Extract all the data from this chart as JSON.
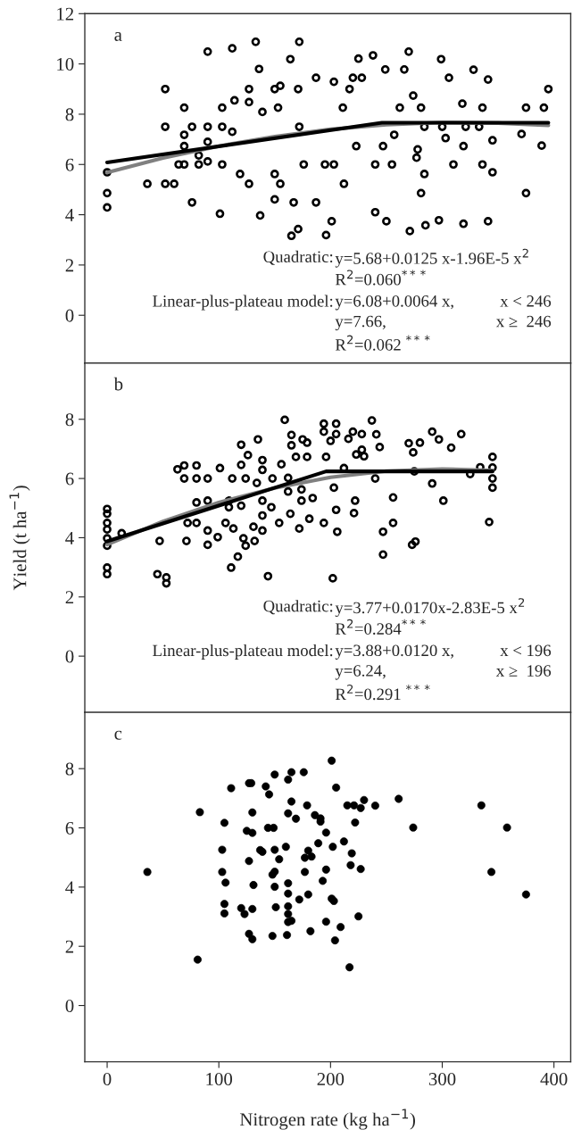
{
  "chart_data": [
    {
      "type": "scatter",
      "xlim": [
        -20,
        415
      ],
      "xticks": [
        0,
        100,
        200,
        300,
        400
      ],
      "ylim": [
        -1.9,
        12
      ],
      "yticks": [
        0,
        2,
        4,
        6,
        8,
        10,
        12
      ],
      "tick_labels": "y",
      "annotations": [
        "a",
        "Quadratic:",
        "y=5.68+0.0125 x-1.96E-5 x$^{2}$",
        "R$^{2}$=0.060$^{***}$",
        "Linear-plus-plateau model:",
        "y=6.08+0.0064 x,",
        "x < 246",
        "y=7.66,",
        "x ≥  246",
        "R$^{2}$=0.062 $^{***}$"
      ],
      "series": [
        {
          "type": "scatter",
          "color": "#000000",
          "marker": "circle",
          "x": [
            0,
            0,
            0,
            36,
            52,
            52,
            52,
            60,
            69,
            69,
            69,
            64,
            69,
            76,
            76,
            82,
            82,
            90,
            90,
            90,
            90,
            101,
            103,
            103,
            103,
            112,
            114,
            112,
            127,
            127,
            127,
            119,
            133,
            136,
            137,
            139,
            150,
            150,
            150,
            155,
            155,
            153,
            164,
            165,
            171,
            167,
            172,
            171,
            172,
            187,
            187,
            196,
            201,
            203,
            212,
            217,
            220,
            225,
            228,
            238,
            240,
            250,
            249,
            266,
            270,
            271,
            281,
            285,
            297,
            299,
            306,
            319,
            328,
            341,
            341,
            345,
            371,
            375,
            375,
            389,
            395,
            391,
            176,
            195,
            240,
            310,
            336,
            255,
            203,
            211,
            262,
            281,
            336,
            223,
            247,
            319,
            278,
            257,
            300,
            321,
            333,
            284,
            284,
            345,
            277,
            303,
            318,
            274
          ],
          "values": [
            5.69,
            4.86,
            4.29,
            5.23,
            9.0,
            7.5,
            5.23,
            5.23,
            8.26,
            7.18,
            6.73,
            6.0,
            6.0,
            7.5,
            4.49,
            6.0,
            6.36,
            10.49,
            7.5,
            6.9,
            6.12,
            4.04,
            8.26,
            7.5,
            6.0,
            10.62,
            8.55,
            7.3,
            9.0,
            8.48,
            5.23,
            5.62,
            10.88,
            9.8,
            3.97,
            8.09,
            9.0,
            5.62,
            4.61,
            5.23,
            9.13,
            8.26,
            10.19,
            3.16,
            3.43,
            4.49,
            10.88,
            9.0,
            7.5,
            9.45,
            4.49,
            3.19,
            3.74,
            9.29,
            5.23,
            9.0,
            9.45,
            10.21,
            9.45,
            10.34,
            4.1,
            3.74,
            9.78,
            9.78,
            10.49,
            3.35,
            4.86,
            3.58,
            3.78,
            10.19,
            9.45,
            3.64,
            9.77,
            3.74,
            9.38,
            5.69,
            7.21,
            4.86,
            8.26,
            6.75,
            9.0,
            8.26,
            6.0,
            6.0,
            6.0,
            6.0,
            6.0,
            6.0,
            6.0,
            8.26,
            8.26,
            8.26,
            8.26,
            6.73,
            6.73,
            6.73,
            6.6,
            7.18,
            7.5,
            7.5,
            7.5,
            7.5,
            5.62,
            6.96,
            6.27,
            7.05,
            8.42,
            8.74
          ]
        },
        {
          "type": "line",
          "color": "#808080",
          "marker": "none",
          "x": [
            0,
            50,
            100,
            150,
            200,
            250,
            300,
            350,
            395
          ],
          "values": [
            5.68,
            6.26,
            6.73,
            7.11,
            7.4,
            7.58,
            7.67,
            7.65,
            7.56
          ]
        },
        {
          "type": "line",
          "color": "#000000",
          "marker": "none",
          "x": [
            0,
            246,
            395
          ],
          "values": [
            6.08,
            7.66,
            7.66
          ]
        }
      ]
    },
    {
      "type": "scatter",
      "xlim": [
        -20,
        415
      ],
      "xticks": [
        0,
        100,
        200,
        300,
        400
      ],
      "ylim": [
        -1.9,
        9.9
      ],
      "yticks": [
        0,
        2,
        4,
        6,
        8
      ],
      "tick_labels": "y",
      "ylabel": "Yield (t ha$^{−1}$)",
      "annotations": [
        "b",
        "Quadratic:",
        "y=3.77+0.0170x-2.83E-5 x$^{2}$",
        "R$^{2}$=0.284$^{***}$",
        "Linear-plus-plateau model:",
        "y=3.88+0.0120 x,",
        "x < 196",
        "y=6.24,",
        "x ≥  196",
        "R$^{2}$=0.291 $^{***}$"
      ],
      "series": [
        {
          "type": "scatter",
          "color": "#000000",
          "marker": "circle",
          "x": [
            0,
            0,
            0,
            0,
            0,
            0,
            0,
            0,
            13,
            45,
            53,
            53,
            47,
            63,
            69,
            69,
            72,
            71,
            80,
            80,
            80,
            80,
            90,
            90,
            90,
            90,
            101,
            99,
            109,
            109,
            106,
            113,
            111,
            117,
            112,
            120,
            120,
            120,
            124,
            126,
            122,
            124,
            132,
            131,
            135,
            139,
            139,
            134,
            139,
            139,
            139,
            144,
            148,
            147,
            154,
            159,
            165,
            165,
            169,
            156,
            162,
            162,
            164,
            175,
            179,
            179,
            172,
            174,
            174,
            184,
            181,
            194,
            194,
            196,
            194,
            202,
            200,
            205,
            205,
            203,
            205,
            206,
            216,
            220,
            228,
            222,
            221,
            212,
            223,
            230,
            228,
            237,
            241,
            240,
            244,
            247,
            247,
            256,
            256,
            270,
            280,
            274,
            273,
            276,
            275,
            291,
            297,
            291,
            301,
            308,
            317,
            325,
            334,
            342,
            345,
            345,
            345,
            345
          ],
          "values": [
            4.97,
            4.81,
            4.5,
            4.28,
            3.98,
            3.73,
            2.99,
            2.77,
            4.15,
            2.77,
            2.66,
            2.46,
            3.89,
            6.31,
            6.44,
            6.0,
            4.5,
            3.89,
            6.44,
            6.0,
            5.19,
            4.5,
            6.0,
            5.25,
            4.24,
            3.76,
            6.35,
            4.02,
            5.25,
            5.03,
            4.5,
            4.31,
            2.99,
            3.36,
            6.0,
            7.14,
            6.46,
            5.08,
            6.0,
            6.79,
            3.98,
            3.73,
            3.89,
            4.37,
            7.32,
            6.62,
            6.29,
            5.85,
            5.25,
            4.75,
            4.24,
            2.7,
            6.0,
            5.03,
            4.5,
            7.98,
            7.47,
            7.12,
            6.73,
            6.48,
            6.02,
            5.56,
            4.81,
            7.32,
            7.21,
            6.73,
            4.31,
            5.25,
            5.63,
            5.34,
            4.64,
            7.85,
            7.58,
            6.73,
            4.5,
            2.63,
            7.27,
            7.85,
            7.5,
            5.69,
            4.94,
            4.2,
            7.34,
            7.58,
            7.5,
            5.25,
            4.83,
            6.35,
            6.81,
            6.75,
            6.97,
            7.96,
            7.49,
            6.0,
            7.06,
            4.2,
            3.43,
            5.36,
            4.5,
            7.19,
            7.21,
            6.88,
            3.76,
            3.87,
            6.24,
            7.58,
            7.32,
            5.83,
            5.25,
            7.04,
            7.5,
            6.15,
            6.38,
            4.53,
            6.73,
            6.37,
            6.0,
            5.69
          ]
        },
        {
          "type": "line",
          "color": "#808080",
          "marker": "none",
          "x": [
            0,
            50,
            100,
            150,
            200,
            250,
            300,
            345
          ],
          "values": [
            3.77,
            4.55,
            5.19,
            5.68,
            6.04,
            6.25,
            6.32,
            6.27
          ]
        },
        {
          "type": "line",
          "color": "#000000",
          "marker": "none",
          "x": [
            0,
            196,
            345
          ],
          "values": [
            3.88,
            6.24,
            6.24
          ]
        }
      ]
    },
    {
      "type": "scatter",
      "xlim": [
        -20,
        415
      ],
      "xticks": [
        0,
        100,
        200,
        300,
        400
      ],
      "ylim": [
        -1.9,
        9.9
      ],
      "yticks": [
        0,
        2,
        4,
        6,
        8
      ],
      "xlabel": "Nitrogen rate (kg ha$^{−1}$)",
      "annotations": [
        "c"
      ],
      "series": [
        {
          "type": "scatter",
          "color": "#000000",
          "marker": "circle",
          "x": [
            36,
            83,
            81,
            105,
            103,
            103,
            106,
            105,
            105,
            111,
            125,
            127,
            129,
            130,
            130,
            127,
            131,
            130,
            120,
            123,
            127,
            130,
            142,
            145,
            150,
            144,
            149,
            137,
            139,
            150,
            154,
            148,
            150,
            150,
            151,
            148,
            165,
            162,
            165,
            162,
            169,
            160,
            162,
            162,
            162,
            162,
            162,
            165,
            161,
            176,
            179,
            186,
            191,
            191,
            196,
            189,
            180,
            177,
            183,
            177,
            196,
            193,
            180,
            172,
            201,
            203,
            196,
            182,
            201,
            205,
            202,
            212,
            219,
            218,
            227,
            222,
            215,
            221,
            227,
            230,
            240,
            225,
            209,
            204,
            217,
            261,
            274,
            335,
            358,
            344,
            375
          ],
          "values": [
            4.51,
            6.53,
            1.55,
            6.17,
            5.26,
            4.51,
            4.15,
            3.43,
            3.11,
            7.34,
            5.9,
            7.51,
            7.51,
            6.52,
            5.83,
            4.88,
            4.07,
            3.26,
            3.29,
            3.09,
            2.42,
            2.24,
            7.4,
            7.13,
            7.8,
            6.0,
            6.0,
            5.25,
            5.19,
            5.26,
            4.94,
            4.42,
            4.52,
            4.01,
            3.32,
            2.35,
            7.88,
            7.63,
            6.89,
            6.49,
            6.31,
            5.36,
            4.13,
            3.78,
            3.35,
            3.09,
            2.82,
            2.86,
            2.38,
            7.88,
            6.76,
            6.43,
            6.32,
            6.21,
            5.84,
            5.48,
            5.23,
            4.99,
            5.03,
            4.51,
            4.59,
            4.21,
            3.75,
            3.58,
            3.61,
            3.53,
            2.83,
            2.51,
            8.27,
            7.36,
            5.36,
            5.54,
            5.14,
            4.74,
            4.61,
            6.18,
            6.76,
            6.76,
            6.67,
            6.94,
            6.75,
            3.01,
            2.65,
            2.2,
            1.29,
            6.98,
            6.01,
            6.76,
            6.01,
            4.51,
            3.75
          ]
        }
      ]
    }
  ]
}
